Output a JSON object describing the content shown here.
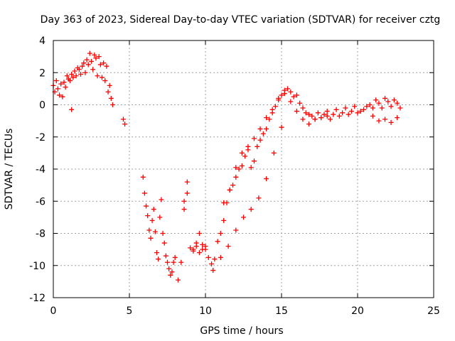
{
  "chart_data": {
    "type": "scatter",
    "title": "Day 363 of 2023, Sidereal Day-to-day VTEC variation (SDTVAR) for receiver cztg",
    "xlabel": "GPS time / hours",
    "ylabel": "SDTVAR / TECUs",
    "xlim": [
      0,
      25
    ],
    "ylim": [
      -12,
      4
    ],
    "xticks": [
      0,
      5,
      10,
      15,
      20,
      25
    ],
    "yticks": [
      -12,
      -10,
      -8,
      -6,
      -4,
      -2,
      0,
      2,
      4
    ],
    "grid": true,
    "marker": "+",
    "color": "#ff0000",
    "series": [
      {
        "name": "SDTVAR",
        "x": [
          0.0,
          0.1,
          0.2,
          0.3,
          0.4,
          0.5,
          0.6,
          0.7,
          0.8,
          0.9,
          1.0,
          1.1,
          1.2,
          1.3,
          1.4,
          1.5,
          1.6,
          1.7,
          1.8,
          1.9,
          2.0,
          2.1,
          2.2,
          2.3,
          2.4,
          2.5,
          2.6,
          2.7,
          2.8,
          2.9,
          3.0,
          3.1,
          3.2,
          3.3,
          3.4,
          3.5,
          3.6,
          3.7,
          3.8,
          3.9,
          1.2,
          4.6,
          4.7,
          5.9,
          6.0,
          6.1,
          6.2,
          6.3,
          6.4,
          6.5,
          6.6,
          6.7,
          6.8,
          6.9,
          7.0,
          7.1,
          7.2,
          7.3,
          7.4,
          7.5,
          7.6,
          7.7,
          7.8,
          7.9,
          8.0,
          8.2,
          8.4,
          8.6,
          8.8,
          9.0,
          9.2,
          9.4,
          9.6,
          9.8,
          10.0,
          10.2,
          10.4,
          10.6,
          10.8,
          11.0,
          11.2,
          11.4,
          11.6,
          11.8,
          12.0,
          12.2,
          12.4,
          12.6,
          12.8,
          13.0,
          13.2,
          13.4,
          13.6,
          13.8,
          14.0,
          14.2,
          14.4,
          14.6,
          14.8,
          15.0,
          15.2,
          15.4,
          15.6,
          15.8,
          16.0,
          16.2,
          16.4,
          16.6,
          16.8,
          17.0,
          17.2,
          17.4,
          17.6,
          17.8,
          18.0,
          18.2,
          18.4,
          18.6,
          18.8,
          19.0,
          19.2,
          19.4,
          19.6,
          19.8,
          20.0,
          20.2,
          20.4,
          20.6,
          20.8,
          21.0,
          21.2,
          21.4,
          21.6,
          21.8,
          22.0,
          22.2,
          22.4,
          22.6,
          22.8,
          8.6,
          8.8,
          9.2,
          9.4,
          9.6,
          9.8,
          10.0,
          10.5,
          11.0,
          11.5,
          12.0,
          12.5,
          13.0,
          13.5,
          14.0,
          14.5,
          15.0,
          11.2,
          11.6,
          12.0,
          12.4,
          12.8,
          13.2,
          13.6,
          14.0,
          14.4,
          14.8,
          15.2,
          15.6,
          16.0,
          16.4,
          16.8,
          17.2,
          17.6,
          18.0,
          21.0,
          21.4,
          21.8,
          22.2,
          22.6
        ],
        "y": [
          1.2,
          0.8,
          1.5,
          1.0,
          0.6,
          1.3,
          0.5,
          1.4,
          1.1,
          1.8,
          1.6,
          1.5,
          1.9,
          1.7,
          2.1,
          1.8,
          2.3,
          2.2,
          1.9,
          2.4,
          2.6,
          2.0,
          2.8,
          2.5,
          3.2,
          2.7,
          2.2,
          3.1,
          2.9,
          1.8,
          3.0,
          2.5,
          1.7,
          2.6,
          1.5,
          2.4,
          0.8,
          1.2,
          0.4,
          0.0,
          -0.3,
          -0.9,
          -1.2,
          -4.5,
          -5.5,
          -6.3,
          -6.9,
          -7.8,
          -8.3,
          -7.2,
          -6.5,
          -7.9,
          -9.2,
          -9.6,
          -7.0,
          -5.9,
          -8.0,
          -8.6,
          -9.4,
          -9.8,
          -10.2,
          -10.6,
          -10.4,
          -9.8,
          -9.5,
          -10.9,
          -9.8,
          -6.0,
          -4.8,
          -8.9,
          -9.1,
          -8.6,
          -8.0,
          -9.0,
          -8.8,
          -9.5,
          -9.9,
          -9.6,
          -8.5,
          -8.0,
          -7.2,
          -6.1,
          -5.3,
          -5.0,
          -4.5,
          -4.0,
          -3.8,
          -3.2,
          -2.8,
          -3.9,
          -3.5,
          -2.6,
          -2.2,
          -1.8,
          -1.5,
          -0.9,
          -0.5,
          -0.1,
          0.3,
          0.6,
          0.9,
          1.0,
          0.8,
          0.5,
          0.6,
          0.1,
          -0.2,
          -0.5,
          -0.6,
          -0.7,
          -0.9,
          -0.5,
          -0.8,
          -0.6,
          -0.4,
          -0.9,
          -0.6,
          -0.3,
          -0.7,
          -0.5,
          -0.2,
          -0.6,
          -0.4,
          -0.1,
          -0.5,
          -0.4,
          -0.3,
          -0.1,
          0.0,
          -0.2,
          0.3,
          0.1,
          -0.2,
          0.4,
          0.2,
          -0.1,
          0.3,
          0.1,
          -0.2,
          -6.5,
          -5.5,
          -9.0,
          -8.8,
          -9.2,
          -8.7,
          -9.0,
          -10.3,
          -9.5,
          -8.8,
          -7.8,
          -7.0,
          -6.5,
          -5.8,
          -4.6,
          -3.0,
          -1.4,
          -6.1,
          -5.3,
          -3.9,
          -3.0,
          -2.6,
          -2.1,
          -1.5,
          -0.8,
          -0.3,
          0.4,
          0.7,
          0.2,
          -0.4,
          -0.9,
          -1.2,
          -0.9,
          -0.8,
          -0.7,
          -0.7,
          -1.0,
          -0.9,
          -1.1,
          -0.8
        ]
      }
    ]
  }
}
